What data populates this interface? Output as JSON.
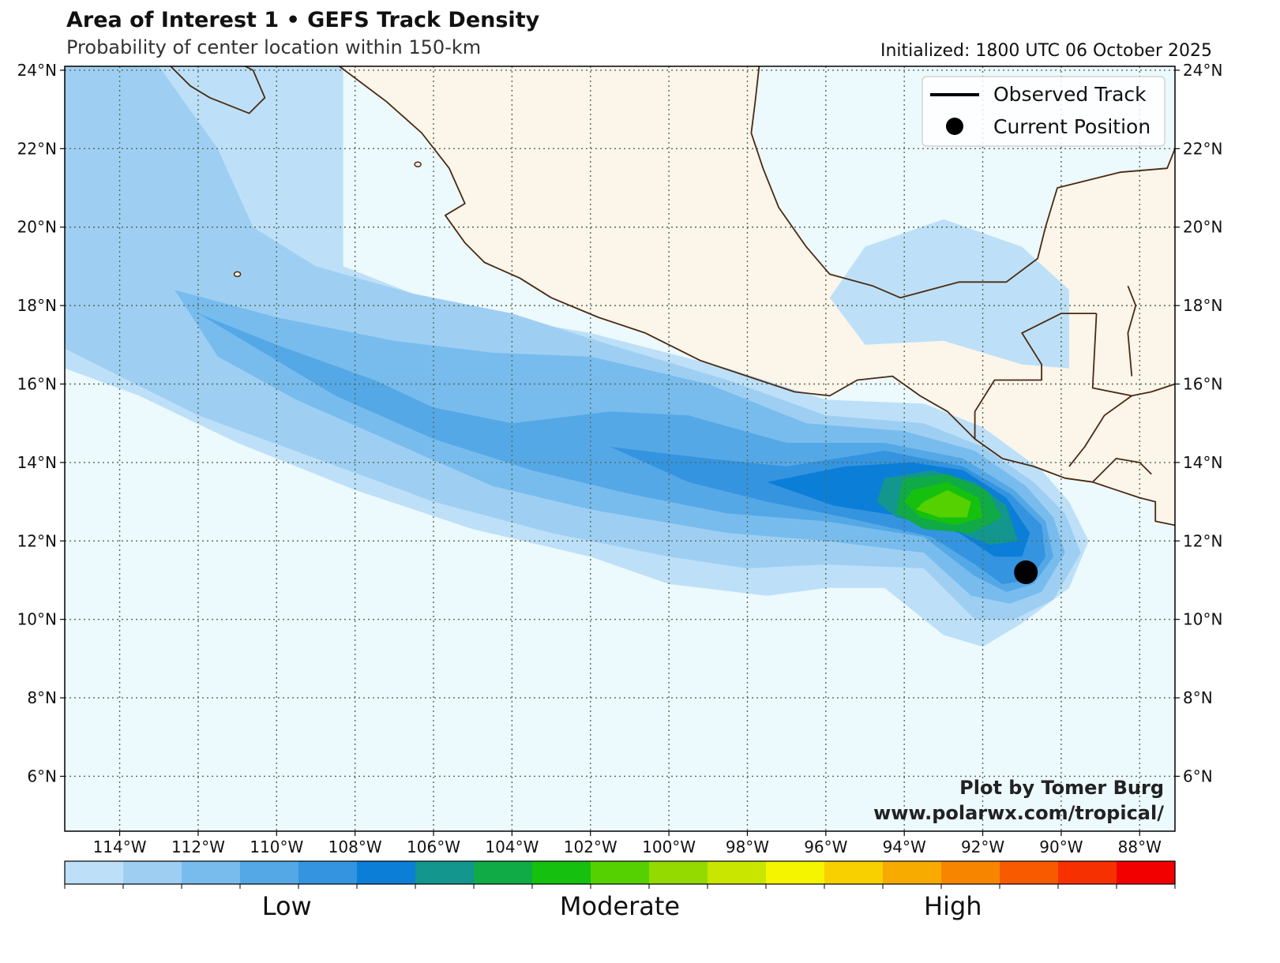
{
  "header": {
    "title": "Area of Interest 1 • GEFS Track Density",
    "subtitle": "Probability of center location within 150-km",
    "initialized": "Initialized: 1800 UTC 06 October 2025"
  },
  "map": {
    "extent": {
      "lon_min": -115.4,
      "lon_max": -87.1,
      "lat_min": 4.6,
      "lat_max": 24.1
    },
    "lon_ticks": [
      {
        "value": -114,
        "label": "114°W"
      },
      {
        "value": -112,
        "label": "112°W"
      },
      {
        "value": -110,
        "label": "110°W"
      },
      {
        "value": -108,
        "label": "108°W"
      },
      {
        "value": -106,
        "label": "106°W"
      },
      {
        "value": -104,
        "label": "104°W"
      },
      {
        "value": -102,
        "label": "102°W"
      },
      {
        "value": -100,
        "label": "100°W"
      },
      {
        "value": -98,
        "label": "98°W"
      },
      {
        "value": -96,
        "label": "96°W"
      },
      {
        "value": -94,
        "label": "94°W"
      },
      {
        "value": -92,
        "label": "92°W"
      },
      {
        "value": -90,
        "label": "90°W"
      },
      {
        "value": -88,
        "label": "88°W"
      }
    ],
    "lat_ticks": [
      {
        "value": 6,
        "label": "6°N"
      },
      {
        "value": 8,
        "label": "8°N"
      },
      {
        "value": 10,
        "label": "10°N"
      },
      {
        "value": 12,
        "label": "12°N"
      },
      {
        "value": 14,
        "label": "14°N"
      },
      {
        "value": 16,
        "label": "16°N"
      },
      {
        "value": 18,
        "label": "18°N"
      },
      {
        "value": 20,
        "label": "20°N"
      },
      {
        "value": 22,
        "label": "22°N"
      },
      {
        "value": 24,
        "label": "24°N"
      }
    ],
    "current_position": {
      "lon": -90.9,
      "lat": 11.2
    },
    "colors": {
      "ocean": "#ecf9fd",
      "land": "#fbf5ea",
      "coast": "#4a2a12",
      "grid": "#556b55"
    }
  },
  "legend": {
    "position": "top-right",
    "items": [
      {
        "label": "Observed Track",
        "symbol": "line"
      },
      {
        "label": "Current Position",
        "symbol": "dot"
      }
    ]
  },
  "credits": {
    "line1": "Plot by Tomer Burg",
    "line2": "www.polarwx.com/tropical/"
  },
  "colorbar": {
    "colors": [
      "#bde0f8",
      "#9ecff3",
      "#78bcee",
      "#55a8e6",
      "#3494e0",
      "#0b7ed8",
      "#12968e",
      "#10aa47",
      "#15c00f",
      "#55d000",
      "#94da00",
      "#c8e600",
      "#f5f500",
      "#f8d000",
      "#f7aa00",
      "#f88500",
      "#f85a00",
      "#f73000",
      "#f20000"
    ],
    "labels": [
      {
        "text": "Low",
        "pos": 0.2
      },
      {
        "text": "Moderate",
        "pos": 0.5
      },
      {
        "text": "High",
        "pos": 0.8
      }
    ]
  },
  "density_bands": [
    {
      "level": 1,
      "polygon": [
        [
          -115.4,
          24.1
        ],
        [
          -108.3,
          24.1
        ],
        [
          -108.3,
          19.0
        ],
        [
          -105.5,
          17.9
        ],
        [
          -102.0,
          17.3
        ],
        [
          -98.5,
          16.4
        ],
        [
          -96.0,
          15.6
        ],
        [
          -93.5,
          15.5
        ],
        [
          -92.0,
          14.9
        ],
        [
          -90.5,
          13.8
        ],
        [
          -89.8,
          13.0
        ],
        [
          -89.3,
          12.0
        ],
        [
          -89.8,
          10.8
        ],
        [
          -91.0,
          9.9
        ],
        [
          -92.0,
          9.3
        ],
        [
          -93.0,
          9.6
        ],
        [
          -94.5,
          10.8
        ],
        [
          -96.0,
          10.8
        ],
        [
          -97.5,
          10.6
        ],
        [
          -100.0,
          10.9
        ],
        [
          -102.0,
          11.6
        ],
        [
          -105.0,
          12.3
        ],
        [
          -108.0,
          13.3
        ],
        [
          -111.0,
          14.5
        ],
        [
          -113.5,
          15.7
        ],
        [
          -115.4,
          16.4
        ]
      ]
    },
    {
      "level": 1,
      "polygon": [
        [
          -95.9,
          18.2
        ],
        [
          -95.0,
          19.5
        ],
        [
          -93.0,
          20.2
        ],
        [
          -91.0,
          19.5
        ],
        [
          -89.8,
          18.4
        ],
        [
          -89.8,
          16.4
        ],
        [
          -91.0,
          16.5
        ],
        [
          -93.0,
          17.1
        ],
        [
          -95.0,
          17.0
        ]
      ]
    },
    {
      "level": 2,
      "polygon": [
        [
          -115.4,
          24.1
        ],
        [
          -113.0,
          24.1
        ],
        [
          -111.5,
          22.0
        ],
        [
          -110.6,
          20.0
        ],
        [
          -109.0,
          19.0
        ],
        [
          -106.5,
          18.3
        ],
        [
          -104.0,
          17.8
        ],
        [
          -101.5,
          17.0
        ],
        [
          -98.5,
          16.1
        ],
        [
          -96.0,
          15.2
        ],
        [
          -93.5,
          15.0
        ],
        [
          -92.0,
          14.4
        ],
        [
          -90.7,
          13.5
        ],
        [
          -89.9,
          12.7
        ],
        [
          -89.5,
          11.7
        ],
        [
          -90.2,
          10.5
        ],
        [
          -91.2,
          10.0
        ],
        [
          -92.2,
          10.0
        ],
        [
          -93.5,
          11.3
        ],
        [
          -96.0,
          11.4
        ],
        [
          -98.0,
          11.3
        ],
        [
          -100.0,
          11.6
        ],
        [
          -103.0,
          12.2
        ],
        [
          -106.0,
          13.0
        ],
        [
          -109.0,
          14.1
        ],
        [
          -112.0,
          15.2
        ],
        [
          -114.0,
          16.2
        ],
        [
          -115.4,
          16.9
        ]
      ]
    },
    {
      "level": 3,
      "polygon": [
        [
          -112.6,
          18.4
        ],
        [
          -110.0,
          17.7
        ],
        [
          -107.0,
          17.1
        ],
        [
          -104.5,
          16.8
        ],
        [
          -102.0,
          16.7
        ],
        [
          -99.0,
          16.0
        ],
        [
          -96.5,
          15.0
        ],
        [
          -94.0,
          14.8
        ],
        [
          -92.2,
          14.3
        ],
        [
          -90.9,
          13.4
        ],
        [
          -90.2,
          12.6
        ],
        [
          -89.9,
          11.7
        ],
        [
          -90.5,
          10.7
        ],
        [
          -91.3,
          10.4
        ],
        [
          -92.3,
          10.6
        ],
        [
          -93.5,
          11.7
        ],
        [
          -96.0,
          12.0
        ],
        [
          -98.5,
          12.2
        ],
        [
          -102.0,
          12.8
        ],
        [
          -104.5,
          13.4
        ],
        [
          -107.0,
          14.5
        ],
        [
          -109.5,
          15.6
        ],
        [
          -111.5,
          16.7
        ]
      ]
    },
    {
      "level": 4,
      "polygon": [
        [
          -112.0,
          17.8
        ],
        [
          -110.0,
          17.0
        ],
        [
          -107.5,
          16.1
        ],
        [
          -106.0,
          15.4
        ],
        [
          -104.0,
          15.0
        ],
        [
          -101.5,
          15.3
        ],
        [
          -99.5,
          15.2
        ],
        [
          -97.0,
          14.5
        ],
        [
          -94.5,
          14.5
        ],
        [
          -92.5,
          14.1
        ],
        [
          -91.2,
          13.3
        ],
        [
          -90.4,
          12.5
        ],
        [
          -90.2,
          11.6
        ],
        [
          -90.7,
          10.9
        ],
        [
          -91.4,
          10.7
        ],
        [
          -92.2,
          11.1
        ],
        [
          -93.5,
          12.1
        ],
        [
          -96.0,
          12.5
        ],
        [
          -98.5,
          12.7
        ],
        [
          -101.0,
          13.2
        ],
        [
          -103.5,
          13.8
        ],
        [
          -106.0,
          14.6
        ],
        [
          -108.5,
          15.7
        ],
        [
          -110.5,
          16.9
        ]
      ]
    },
    {
      "level": 5,
      "polygon": [
        [
          -101.5,
          14.4
        ],
        [
          -99.0,
          14.1
        ],
        [
          -97.0,
          13.9
        ],
        [
          -94.5,
          14.3
        ],
        [
          -92.5,
          13.9
        ],
        [
          -91.3,
          13.2
        ],
        [
          -90.5,
          12.4
        ],
        [
          -90.4,
          11.6
        ],
        [
          -90.8,
          11.0
        ],
        [
          -91.5,
          10.9
        ],
        [
          -92.2,
          11.4
        ],
        [
          -93.3,
          12.1
        ],
        [
          -95.5,
          12.6
        ],
        [
          -97.5,
          13.0
        ],
        [
          -99.5,
          13.5
        ]
      ]
    },
    {
      "level": 6,
      "polygon": [
        [
          -97.5,
          13.5
        ],
        [
          -95.5,
          13.9
        ],
        [
          -93.8,
          14.0
        ],
        [
          -92.5,
          13.8
        ],
        [
          -91.4,
          13.1
        ],
        [
          -90.8,
          12.2
        ],
        [
          -91.0,
          11.6
        ],
        [
          -91.7,
          11.6
        ],
        [
          -92.6,
          12.2
        ],
        [
          -93.9,
          12.6
        ],
        [
          -95.8,
          12.9
        ]
      ]
    },
    {
      "level": 7,
      "polygon": [
        [
          -94.5,
          13.6
        ],
        [
          -93.3,
          13.8
        ],
        [
          -92.2,
          13.5
        ],
        [
          -91.4,
          12.9
        ],
        [
          -91.1,
          12.0
        ],
        [
          -91.8,
          11.9
        ],
        [
          -92.8,
          12.3
        ],
        [
          -94.2,
          12.6
        ],
        [
          -94.7,
          13.0
        ]
      ]
    },
    {
      "level": 8,
      "polygon": [
        [
          -94.0,
          13.6
        ],
        [
          -92.9,
          13.7
        ],
        [
          -91.9,
          13.3
        ],
        [
          -91.5,
          12.6
        ],
        [
          -92.3,
          12.2
        ],
        [
          -93.5,
          12.3
        ],
        [
          -94.2,
          12.7
        ],
        [
          -94.1,
          13.3
        ]
      ]
    },
    {
      "level": 9,
      "polygon": [
        [
          -93.8,
          13.3
        ],
        [
          -92.9,
          13.5
        ],
        [
          -92.1,
          13.1
        ],
        [
          -92.0,
          12.6
        ],
        [
          -92.7,
          12.4
        ],
        [
          -93.6,
          12.6
        ],
        [
          -94.0,
          13.0
        ]
      ]
    },
    {
      "level": 10,
      "polygon": [
        [
          -93.5,
          13.0
        ],
        [
          -92.9,
          13.3
        ],
        [
          -92.3,
          13.0
        ],
        [
          -92.4,
          12.6
        ],
        [
          -93.1,
          12.6
        ],
        [
          -93.7,
          12.8
        ]
      ]
    }
  ],
  "coastline": {
    "land_polygons": [
      [
        [
          -108.4,
          24.1
        ],
        [
          -107.2,
          23.2
        ],
        [
          -106.3,
          22.4
        ],
        [
          -105.6,
          21.5
        ],
        [
          -105.2,
          20.6
        ],
        [
          -105.7,
          20.3
        ],
        [
          -105.2,
          19.6
        ],
        [
          -104.7,
          19.1
        ],
        [
          -103.8,
          18.7
        ],
        [
          -103.0,
          18.2
        ],
        [
          -101.8,
          17.7
        ],
        [
          -100.6,
          17.3
        ],
        [
          -99.2,
          16.6
        ],
        [
          -98.0,
          16.2
        ],
        [
          -96.8,
          15.8
        ],
        [
          -95.9,
          15.7
        ],
        [
          -95.2,
          16.1
        ],
        [
          -94.3,
          16.2
        ],
        [
          -93.6,
          15.7
        ],
        [
          -92.9,
          15.3
        ],
        [
          -92.2,
          14.6
        ],
        [
          -91.5,
          14.1
        ],
        [
          -90.7,
          13.9
        ],
        [
          -89.9,
          13.6
        ],
        [
          -89.2,
          13.5
        ],
        [
          -88.6,
          13.3
        ],
        [
          -88.0,
          13.1
        ],
        [
          -87.6,
          13.0
        ],
        [
          -87.6,
          12.5
        ],
        [
          -87.1,
          12.4
        ],
        [
          -87.1,
          22.0
        ],
        [
          -87.3,
          21.5
        ],
        [
          -88.5,
          21.4
        ],
        [
          -90.1,
          21.0
        ],
        [
          -90.4,
          20.0
        ],
        [
          -90.6,
          19.2
        ],
        [
          -91.4,
          18.6
        ],
        [
          -92.6,
          18.6
        ],
        [
          -94.1,
          18.2
        ],
        [
          -94.8,
          18.5
        ],
        [
          -95.9,
          18.8
        ],
        [
          -96.5,
          19.5
        ],
        [
          -97.2,
          20.5
        ],
        [
          -97.6,
          21.5
        ],
        [
          -97.9,
          22.4
        ],
        [
          -97.8,
          23.2
        ],
        [
          -97.7,
          24.1
        ]
      ]
    ],
    "lines": [
      [
        [
          -112.7,
          24.1
        ],
        [
          -112.2,
          23.6
        ],
        [
          -111.7,
          23.3
        ],
        [
          -111.2,
          23.1
        ],
        [
          -110.7,
          22.9
        ],
        [
          -110.3,
          23.3
        ],
        [
          -110.6,
          24.0
        ],
        [
          -110.8,
          24.1
        ]
      ],
      [
        [
          -108.4,
          24.1
        ],
        [
          -107.2,
          23.2
        ],
        [
          -106.3,
          22.4
        ],
        [
          -105.6,
          21.5
        ],
        [
          -105.2,
          20.6
        ],
        [
          -105.7,
          20.3
        ],
        [
          -105.2,
          19.6
        ],
        [
          -104.7,
          19.1
        ],
        [
          -103.8,
          18.7
        ],
        [
          -103.0,
          18.2
        ],
        [
          -101.8,
          17.7
        ],
        [
          -100.6,
          17.3
        ],
        [
          -99.2,
          16.6
        ],
        [
          -98.0,
          16.2
        ],
        [
          -96.8,
          15.8
        ],
        [
          -95.9,
          15.7
        ],
        [
          -95.2,
          16.1
        ],
        [
          -94.3,
          16.2
        ],
        [
          -93.6,
          15.7
        ],
        [
          -92.9,
          15.3
        ],
        [
          -92.2,
          14.6
        ],
        [
          -91.5,
          14.1
        ],
        [
          -90.7,
          13.9
        ],
        [
          -89.9,
          13.6
        ],
        [
          -89.2,
          13.5
        ],
        [
          -88.6,
          13.3
        ],
        [
          -88.0,
          13.1
        ],
        [
          -87.6,
          13.0
        ],
        [
          -87.6,
          12.5
        ],
        [
          -87.1,
          12.4
        ]
      ],
      [
        [
          -97.7,
          24.1
        ],
        [
          -97.8,
          23.2
        ],
        [
          -97.9,
          22.4
        ],
        [
          -97.6,
          21.5
        ],
        [
          -97.2,
          20.5
        ],
        [
          -96.5,
          19.5
        ],
        [
          -95.9,
          18.8
        ],
        [
          -94.8,
          18.5
        ],
        [
          -94.1,
          18.2
        ],
        [
          -92.6,
          18.6
        ],
        [
          -91.4,
          18.6
        ],
        [
          -90.6,
          19.2
        ],
        [
          -90.4,
          20.0
        ],
        [
          -90.1,
          21.0
        ],
        [
          -88.5,
          21.4
        ],
        [
          -87.3,
          21.5
        ],
        [
          -87.1,
          22.0
        ]
      ],
      [
        [
          -92.2,
          14.6
        ],
        [
          -92.2,
          15.3
        ],
        [
          -91.7,
          16.1
        ],
        [
          -90.5,
          16.1
        ],
        [
          -90.5,
          16.5
        ],
        [
          -91.0,
          17.3
        ],
        [
          -90.0,
          17.8
        ],
        [
          -89.1,
          17.8
        ]
      ],
      [
        [
          -89.1,
          17.8
        ],
        [
          -89.2,
          15.9
        ],
        [
          -88.2,
          15.7
        ]
      ],
      [
        [
          -88.2,
          15.7
        ],
        [
          -88.9,
          15.2
        ],
        [
          -89.4,
          14.4
        ],
        [
          -89.8,
          13.9
        ]
      ],
      [
        [
          -89.2,
          13.5
        ],
        [
          -88.6,
          14.1
        ],
        [
          -88.0,
          14.0
        ],
        [
          -87.7,
          13.7
        ]
      ],
      [
        [
          -88.2,
          15.7
        ],
        [
          -87.7,
          15.8
        ],
        [
          -87.1,
          16.0
        ]
      ],
      [
        [
          -88.3,
          18.5
        ],
        [
          -88.1,
          18.0
        ],
        [
          -88.3,
          17.3
        ],
        [
          -88.2,
          16.2
        ]
      ]
    ],
    "islands": [
      [
        -111.0,
        18.8
      ],
      [
        -106.4,
        21.6
      ]
    ]
  }
}
